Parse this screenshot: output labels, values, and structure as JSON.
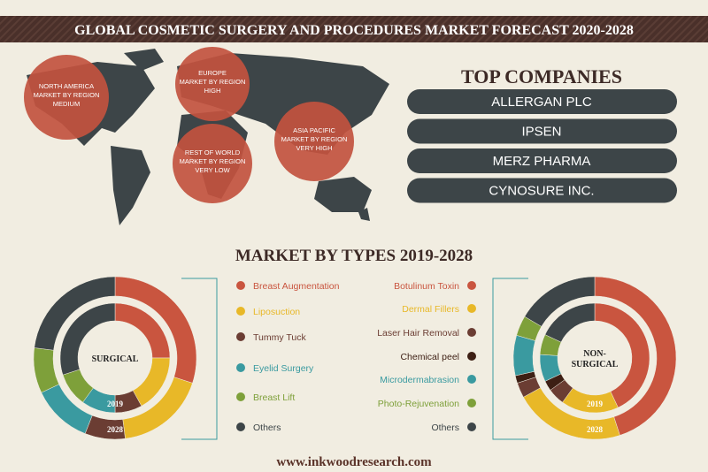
{
  "header": {
    "title": "GLOBAL COSMETIC SURGERY AND PROCEDURES MARKET FORECAST 2020-2028"
  },
  "regions": [
    {
      "name": "NORTH AMERICA",
      "label": "MARKET BY REGION",
      "level": "MEDIUM"
    },
    {
      "name": "EUROPE",
      "label": "MARKET BY REGION",
      "level": "HIGH"
    },
    {
      "name": "REST OF WORLD",
      "label": "MARKET BY REGION",
      "level": "VERY LOW"
    },
    {
      "name": "ASIA PACIFIC",
      "label": "MARKET BY REGION",
      "level": "VERY HIGH"
    }
  ],
  "top_companies": {
    "title": "TOP COMPANIES",
    "items": [
      "ALLERGAN PLC",
      "IPSEN",
      "MERZ PHARMA",
      "CYNOSURE INC."
    ]
  },
  "market_by_types": {
    "title": "MARKET BY TYPES 2019-2028",
    "charts": [
      {
        "type": "donut",
        "center_label": "SURGICAL",
        "categories": [
          "Breast Augmentation",
          "Liposuction",
          "Tummy Tuck",
          "Eyelid Surgery",
          "Breast Lift",
          "Others"
        ],
        "colors": [
          "#c9553f",
          "#e8b828",
          "#6b3d33",
          "#3a9aa0",
          "#7ea03a",
          "#3d4548"
        ],
        "series": [
          {
            "name": "2019",
            "values": [
              25,
              17,
              8,
              10,
              10,
              30
            ]
          },
          {
            "name": "2028",
            "values": [
              30,
              18,
              8,
              12,
              9,
              23
            ]
          }
        ]
      },
      {
        "type": "donut",
        "center_label": "NON- SURGICAL",
        "categories": [
          "Botulinum Toxin",
          "Dermal Fillers",
          "Laser Hair Removal",
          "Chemical peel",
          "Microdermabrasion",
          "Photo-Rejuvenation",
          "Others"
        ],
        "colors": [
          "#c9553f",
          "#e8b828",
          "#6b3d33",
          "#3d1f14",
          "#3a9aa0",
          "#7ea03a",
          "#3d4548"
        ],
        "series": [
          {
            "name": "2019",
            "values": [
              43,
              17,
              5,
              3,
              8,
              6,
              18
            ]
          },
          {
            "name": "2028",
            "values": [
              45,
              22,
              3,
              1.5,
              8,
              4,
              16.5
            ]
          }
        ]
      }
    ]
  },
  "footer": "www.inkwoodresearch.com"
}
